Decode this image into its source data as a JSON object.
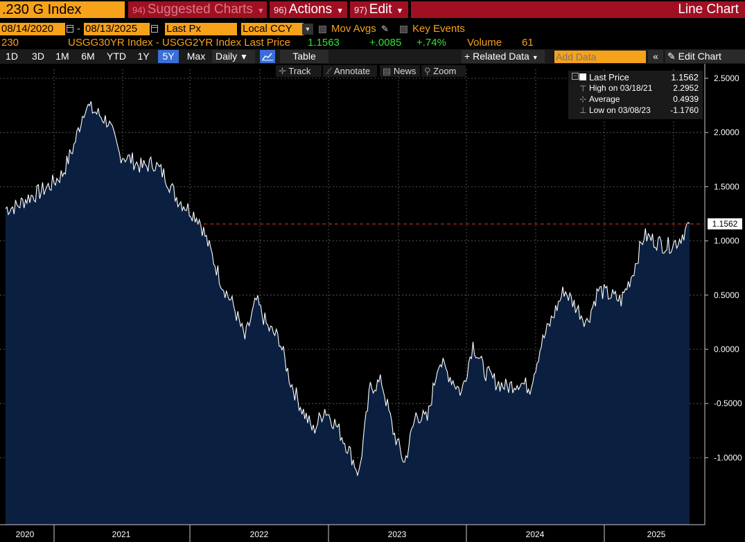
{
  "header": {
    "ticker": ".230 G Index",
    "suggested_num": "94)",
    "suggested_label": "Suggested Charts",
    "actions_num": "96)",
    "actions_label": "Actions",
    "edit_num": "97)",
    "edit_label": "Edit",
    "chart_type": "Line Chart"
  },
  "controls": {
    "start_date": "08/14/2020",
    "separator": "-",
    "end_date": "08/13/2025",
    "field": "Last Px",
    "currency": "Local CCY",
    "mov_avgs": "Mov Avgs",
    "key_events": "Key Events"
  },
  "security_line": {
    "id": "230",
    "description": "USGG30YR Index - USGG2YR Index Last Price",
    "last": "1.1563",
    "change": "+.0085",
    "pct": "+.74%",
    "volume_label": "Volume",
    "volume": "61"
  },
  "timeframes": [
    "1D",
    "3D",
    "1M",
    "6M",
    "YTD",
    "1Y",
    "5Y",
    "Max"
  ],
  "active_timeframe": "5Y",
  "toolbar": {
    "frequency": "Daily",
    "table": "Table",
    "related": "Related Data",
    "add_data_placeholder": "Add Data",
    "edit_chart": "Edit Chart"
  },
  "tools": {
    "track": "Track",
    "annotate": "Annotate",
    "news": "News",
    "zoom": "Zoom"
  },
  "legend": {
    "last_label": "Last Price",
    "last_value": "1.1562",
    "high_label": "High on 03/18/21",
    "high_value": "2.2952",
    "avg_label": "Average",
    "avg_value": "0.4939",
    "low_label": "Low on 03/08/23",
    "low_value": "-1.1760"
  },
  "last_marker": "1.1562",
  "colors": {
    "accent": "#f7a21b",
    "toolbar_red": "#a10f23",
    "fill": "#0b2040",
    "positive": "#2ee62e",
    "active_blue": "#3a6fd8"
  },
  "chart_data": {
    "type": "area",
    "ylim": [
      -1.5,
      2.6
    ],
    "yticks": [
      "2.5000",
      "2.0000",
      "1.5000",
      "1.0000",
      "0.5000",
      "0.0000",
      "-0.5000",
      "-1.0000"
    ],
    "ytick_values": [
      2.5,
      2.0,
      1.5,
      1.0,
      0.5,
      0.0,
      -0.5,
      -1.0
    ],
    "xticks": [
      "2020",
      "2021",
      "2022",
      "2023",
      "2024",
      "2025"
    ],
    "x": [
      "2020-08",
      "2020-09",
      "2020-10",
      "2020-11",
      "2020-12",
      "2021-01",
      "2021-02",
      "2021-03",
      "2021-04",
      "2021-05",
      "2021-06",
      "2021-07",
      "2021-08",
      "2021-09",
      "2021-10",
      "2021-11",
      "2021-12",
      "2022-01",
      "2022-02",
      "2022-03",
      "2022-04",
      "2022-05",
      "2022-06",
      "2022-07",
      "2022-08",
      "2022-09",
      "2022-10",
      "2022-11",
      "2022-12",
      "2023-01",
      "2023-02",
      "2023-03",
      "2023-04",
      "2023-05",
      "2023-06",
      "2023-07",
      "2023-08",
      "2023-09",
      "2023-10",
      "2023-11",
      "2023-12",
      "2024-01",
      "2024-02",
      "2024-03",
      "2024-04",
      "2024-05",
      "2024-06",
      "2024-07",
      "2024-08",
      "2024-09",
      "2024-10",
      "2024-11",
      "2024-12",
      "2025-01",
      "2025-02",
      "2025-03",
      "2025-04",
      "2025-05",
      "2025-06",
      "2025-07",
      "2025-08"
    ],
    "values": [
      1.3,
      1.32,
      1.4,
      1.45,
      1.52,
      1.62,
      1.88,
      2.25,
      2.18,
      2.1,
      1.8,
      1.75,
      1.68,
      1.72,
      1.6,
      1.4,
      1.3,
      1.2,
      0.9,
      0.6,
      0.4,
      0.1,
      0.45,
      0.2,
      0.1,
      -0.3,
      -0.55,
      -0.75,
      -0.55,
      -0.7,
      -0.9,
      -1.15,
      -0.35,
      -0.3,
      -0.75,
      -1.05,
      -0.6,
      -0.65,
      -0.1,
      -0.25,
      -0.4,
      0.05,
      -0.2,
      -0.3,
      -0.35,
      -0.3,
      -0.35,
      0.05,
      0.3,
      0.55,
      0.4,
      0.25,
      0.55,
      0.5,
      0.45,
      0.7,
      1.05,
      1.0,
      0.95,
      1.0,
      1.16
    ],
    "last_price": 1.1562
  }
}
